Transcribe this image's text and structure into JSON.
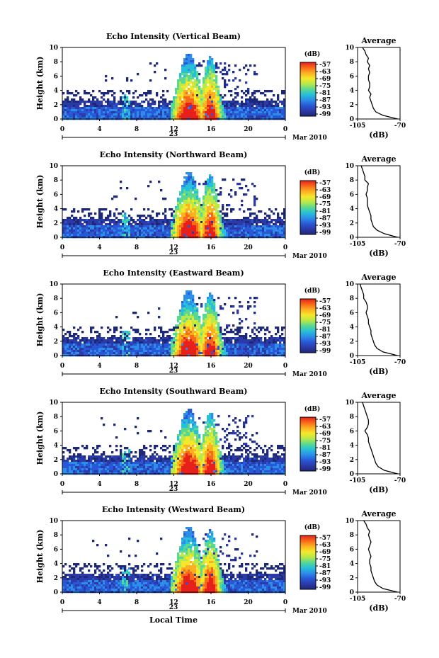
{
  "chart_data": {
    "type": "heatmap",
    "x_label": "Local Time",
    "date_label": "Mar 2010",
    "day": "23",
    "x_ticks": [
      "0",
      "4",
      "8",
      "12",
      "16",
      "20",
      "0"
    ],
    "x_range_hours": [
      0,
      24
    ],
    "y_label": "Height (km)",
    "y_ticks": [
      "0",
      "2",
      "4",
      "6",
      "8",
      "10"
    ],
    "y_range_km": [
      0,
      10
    ],
    "colorbar": {
      "unit": "(dB)",
      "ticks": [
        "-57",
        "-63",
        "-69",
        "-75",
        "-81",
        "-87",
        "-93",
        "-99"
      ],
      "colors": [
        "#e8201c",
        "#f86a1a",
        "#fdb022",
        "#f5e82a",
        "#b8e84a",
        "#5ad890",
        "#26c0d8",
        "#2c8ee8",
        "#2858d8",
        "#2c3aa8",
        "#1e2878"
      ]
    },
    "average_panel": {
      "title": "Average",
      "x_label": "(dB)",
      "x_ticks": [
        "-105",
        "-70"
      ],
      "x_range_db": [
        -105,
        -70
      ],
      "y_ticks": [
        "0",
        "2",
        "4",
        "6",
        "8",
        "10"
      ]
    },
    "panels": [
      {
        "title": "Echo Intensity (Vertical Beam)",
        "avg_km": [
          0,
          0.5,
          1,
          1.5,
          2,
          2.5,
          3,
          3.5,
          4,
          4.5,
          5,
          5.5,
          6,
          6.5,
          7,
          7.5,
          8,
          8.5,
          9,
          9.5,
          10
        ],
        "avg_db": [
          -72,
          -84,
          -90,
          -92,
          -93,
          -94,
          -95,
          -94,
          -96,
          -95,
          -95,
          -96,
          -96,
          -95,
          -96,
          -95,
          -97,
          -96,
          -98,
          -99,
          -101
        ]
      },
      {
        "title": "Echo Intensity (Northward Beam)",
        "avg_km": [
          0,
          0.5,
          1,
          1.5,
          2,
          2.5,
          3,
          3.5,
          4,
          4.5,
          5,
          5.5,
          6,
          6.5,
          7,
          7.5,
          8,
          8.5,
          9,
          9.5,
          10
        ],
        "avg_db": [
          -72,
          -83,
          -89,
          -92,
          -93,
          -94,
          -94,
          -95,
          -96,
          -97,
          -97,
          -97,
          -98,
          -97,
          -97,
          -96,
          -99,
          -99,
          -100,
          -101,
          -102
        ]
      },
      {
        "title": "Echo Intensity (Eastward Beam)",
        "avg_km": [
          0,
          0.5,
          1,
          1.5,
          2,
          2.5,
          3,
          3.5,
          4,
          4.5,
          5,
          5.5,
          6,
          6.5,
          7,
          7.5,
          8,
          8.5,
          9,
          9.5,
          10
        ],
        "avg_db": [
          -72,
          -84,
          -89,
          -91,
          -92,
          -93,
          -94,
          -94,
          -95,
          -96,
          -96,
          -97,
          -98,
          -97,
          -97,
          -98,
          -100,
          -100,
          -101,
          -102,
          -103
        ]
      },
      {
        "title": "Echo Intensity (Southward Beam)",
        "avg_km": [
          0,
          0.5,
          1,
          1.5,
          2,
          2.5,
          3,
          3.5,
          4,
          4.5,
          5,
          5.5,
          6,
          6.5,
          7,
          7.5,
          8,
          8.5,
          9,
          9.5,
          10
        ],
        "avg_db": [
          -72,
          -83,
          -88,
          -90,
          -91,
          -92,
          -93,
          -94,
          -95,
          -96,
          -96,
          -97,
          -99,
          -97,
          -96,
          -96,
          -97,
          -98,
          -99,
          -100,
          -101
        ]
      },
      {
        "title": "Echo Intensity (Westward Beam)",
        "avg_km": [
          0,
          0.5,
          1,
          1.5,
          2,
          2.5,
          3,
          3.5,
          4,
          4.5,
          5,
          5.5,
          6,
          6.5,
          7,
          7.5,
          8,
          8.5,
          9,
          9.5,
          10
        ],
        "avg_db": [
          -72,
          -84,
          -89,
          -91,
          -92,
          -93,
          -94,
          -94,
          -95,
          -95,
          -94,
          -95,
          -96,
          -95,
          -94,
          -95,
          -96,
          -95,
          -97,
          -98,
          -100
        ]
      }
    ]
  }
}
